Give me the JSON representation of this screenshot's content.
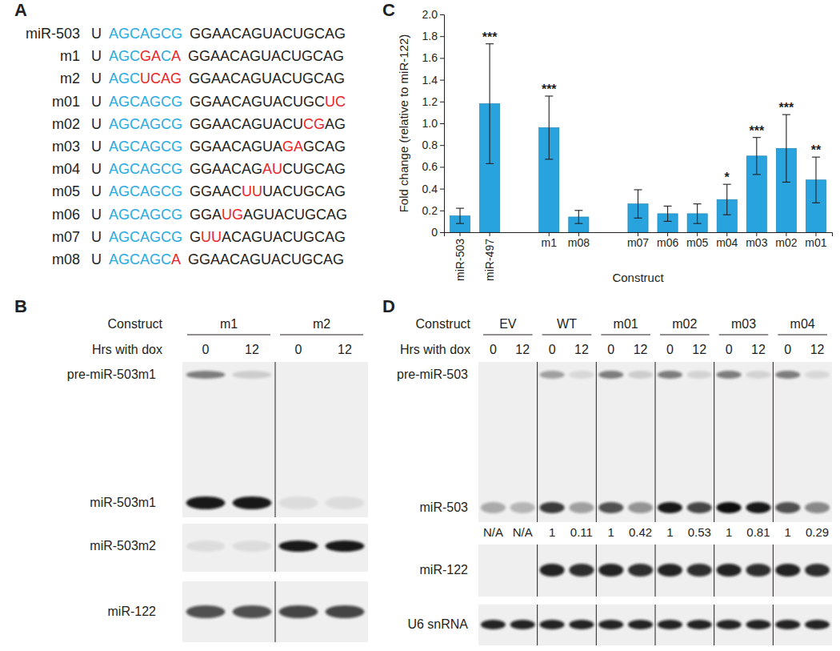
{
  "panel_labels": [
    "A",
    "B",
    "C",
    "D"
  ],
  "panel_a": {
    "rows": [
      {
        "label": "miR-503",
        "parts": [
          [
            {
              "text": "U",
              "color": "#231f20"
            }
          ],
          [
            {
              "text": "AGCAGCG",
              "color": "#29abe2"
            }
          ],
          [
            {
              "text": "GGAACAGUACUGCAG",
              "color": "#231f20"
            }
          ]
        ]
      },
      {
        "label": "m1",
        "parts": [
          [
            {
              "text": "U",
              "color": "#231f20"
            }
          ],
          [
            {
              "text": "AGC",
              "color": "#29abe2"
            },
            {
              "text": "GA",
              "color": "#e8262a"
            },
            {
              "text": "C",
              "color": "#29abe2"
            },
            {
              "text": "A",
              "color": "#e8262a"
            }
          ],
          [
            {
              "text": "GGAACAGUACUGCAG",
              "color": "#231f20"
            }
          ]
        ]
      },
      {
        "label": "m2",
        "parts": [
          [
            {
              "text": "U",
              "color": "#231f20"
            }
          ],
          [
            {
              "text": "AGC",
              "color": "#29abe2"
            },
            {
              "text": "UCAG",
              "color": "#e8262a"
            }
          ],
          [
            {
              "text": "GGAACAGUACUGCAG",
              "color": "#231f20"
            }
          ]
        ]
      },
      {
        "label": "m01",
        "parts": [
          [
            {
              "text": "U",
              "color": "#231f20"
            }
          ],
          [
            {
              "text": "AGCAGCG",
              "color": "#29abe2"
            }
          ],
          [
            {
              "text": "GGAACAGUACUGC",
              "color": "#231f20"
            },
            {
              "text": "UC",
              "color": "#e8262a"
            }
          ]
        ]
      },
      {
        "label": "m02",
        "parts": [
          [
            {
              "text": "U",
              "color": "#231f20"
            }
          ],
          [
            {
              "text": "AGCAGCG",
              "color": "#29abe2"
            }
          ],
          [
            {
              "text": "GGAACAGUACU",
              "color": "#231f20"
            },
            {
              "text": "CG",
              "color": "#e8262a"
            },
            {
              "text": "AG",
              "color": "#231f20"
            }
          ]
        ]
      },
      {
        "label": "m03",
        "parts": [
          [
            {
              "text": "U",
              "color": "#231f20"
            }
          ],
          [
            {
              "text": "AGCAGCG",
              "color": "#29abe2"
            }
          ],
          [
            {
              "text": "GGAACAGUA",
              "color": "#231f20"
            },
            {
              "text": "GA",
              "color": "#e8262a"
            },
            {
              "text": "GCAG",
              "color": "#231f20"
            }
          ]
        ]
      },
      {
        "label": "m04",
        "parts": [
          [
            {
              "text": "U",
              "color": "#231f20"
            }
          ],
          [
            {
              "text": "AGCAGCG",
              "color": "#29abe2"
            }
          ],
          [
            {
              "text": "GGAACAG",
              "color": "#231f20"
            },
            {
              "text": "AU",
              "color": "#e8262a"
            },
            {
              "text": "CUGCAG",
              "color": "#231f20"
            }
          ]
        ]
      },
      {
        "label": "m05",
        "parts": [
          [
            {
              "text": "U",
              "color": "#231f20"
            }
          ],
          [
            {
              "text": "AGCAGCG",
              "color": "#29abe2"
            }
          ],
          [
            {
              "text": "GGAAC",
              "color": "#231f20"
            },
            {
              "text": "UU",
              "color": "#e8262a"
            },
            {
              "text": "UACUGCAG",
              "color": "#231f20"
            }
          ]
        ]
      },
      {
        "label": "m06",
        "parts": [
          [
            {
              "text": "U",
              "color": "#231f20"
            }
          ],
          [
            {
              "text": "AGCAGCG",
              "color": "#29abe2"
            }
          ],
          [
            {
              "text": "GGA",
              "color": "#231f20"
            },
            {
              "text": "UG",
              "color": "#e8262a"
            },
            {
              "text": "AGUACUGCAG",
              "color": "#231f20"
            }
          ]
        ]
      },
      {
        "label": "m07",
        "parts": [
          [
            {
              "text": "U",
              "color": "#231f20"
            }
          ],
          [
            {
              "text": "AGCAGCG",
              "color": "#29abe2"
            }
          ],
          [
            {
              "text": "G",
              "color": "#231f20"
            },
            {
              "text": "UU",
              "color": "#e8262a"
            },
            {
              "text": "ACAGUACUGCAG",
              "color": "#231f20"
            }
          ]
        ]
      },
      {
        "label": "m08",
        "parts": [
          [
            {
              "text": "U",
              "color": "#231f20"
            }
          ],
          [
            {
              "text": "AGCAGC",
              "color": "#29abe2"
            },
            {
              "text": "A",
              "color": "#e8262a"
            }
          ],
          [
            {
              "text": "GGAACAGUACUGCAG",
              "color": "#231f20"
            }
          ]
        ]
      }
    ]
  },
  "panel_b": {
    "header_construct": "Construct",
    "header_time": "Hrs with dox",
    "constructs": [
      {
        "name": "m1",
        "times": [
          0,
          12
        ]
      },
      {
        "name": "m2",
        "times": [
          0,
          12
        ]
      }
    ],
    "blots": [
      {
        "labels": [
          "pre-miR-503m1",
          "miR-503m1"
        ]
      },
      {
        "labels": [
          "miR-503m2"
        ]
      },
      {
        "labels": [
          "miR-122"
        ]
      }
    ]
  },
  "chart_data": {
    "type": "bar",
    "categories": [
      "miR-503",
      "miR-497",
      null,
      "m1",
      "m08",
      null,
      "m07",
      "m06",
      "m05",
      "m04",
      "m03",
      "m02",
      "m01"
    ],
    "values": [
      0.15,
      1.18,
      null,
      0.96,
      0.14,
      null,
      0.26,
      0.17,
      0.17,
      0.3,
      0.7,
      0.77,
      0.48
    ],
    "errors": [
      0.07,
      0.55,
      null,
      0.29,
      0.06,
      null,
      0.13,
      0.07,
      0.09,
      0.14,
      0.17,
      0.31,
      0.21
    ],
    "significance": [
      null,
      "***",
      null,
      "***",
      null,
      null,
      null,
      null,
      null,
      "*",
      "***",
      "***",
      "**"
    ],
    "color": "#29a3dd",
    "x_label": "Construct",
    "y_label": "Fold change (relative to miR-122)",
    "ylim": [
      0,
      2
    ],
    "yticks": [
      0,
      0.2,
      0.4,
      0.6,
      0.8,
      {
        "value": 1,
        "label": "1.0"
      },
      1.2,
      1.4,
      1.6,
      1.8,
      {
        "value": 2,
        "label": "2.0"
      }
    ]
  },
  "panel_d": {
    "header_construct": "Construct",
    "header_time": "Hrs with dox",
    "constructs": [
      {
        "name": "EV",
        "times": [
          0,
          12
        ]
      },
      {
        "name": "WT",
        "times": [
          0,
          12
        ]
      },
      {
        "name": "m01",
        "times": [
          0,
          12
        ]
      },
      {
        "name": "m02",
        "times": [
          0,
          12
        ]
      },
      {
        "name": "m03",
        "times": [
          0,
          12
        ]
      },
      {
        "name": "m04",
        "times": [
          0,
          12
        ]
      }
    ],
    "blots": [
      {
        "labels": [
          "pre-miR-503",
          "miR-503"
        ]
      },
      {
        "labels": [
          "miR-122"
        ]
      },
      {
        "labels": [
          "U6 snRNA"
        ]
      }
    ],
    "quantification": [
      "N/A",
      "N/A",
      1,
      0.11,
      1,
      0.42,
      1,
      0.53,
      1,
      0.81,
      1,
      0.29
    ]
  }
}
